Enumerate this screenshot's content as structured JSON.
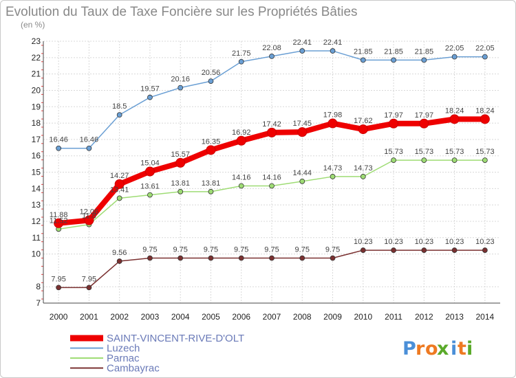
{
  "chart_data": {
    "type": "line",
    "title": "Evolution du Taux de Taxe Foncière sur les Propriétés Bâties",
    "subtitle": "(en %)",
    "xlabel": "",
    "ylabel": "",
    "x": [
      "2000",
      "2001",
      "2002",
      "2003",
      "2004",
      "2005",
      "2006",
      "2007",
      "2008",
      "2009",
      "2010",
      "2011",
      "2012",
      "2013",
      "2014"
    ],
    "ylim": [
      7,
      23
    ],
    "yticks": [
      "7",
      "8",
      "10",
      "11",
      "12",
      "13",
      "14",
      "15",
      "16",
      "17",
      "18",
      "19",
      "20",
      "21",
      "22",
      "23"
    ],
    "grid": true,
    "legend_position": "bottom-left",
    "series": [
      {
        "name": "SAINT-VINCENT-RIVE-D'OLT",
        "color": "#ee0000",
        "values": [
          11.88,
          12.06,
          14.27,
          15.04,
          15.57,
          16.35,
          16.92,
          17.42,
          17.45,
          17.98,
          17.62,
          17.97,
          17.97,
          18.24,
          18.24
        ],
        "labels": [
          "11.88",
          "12.06",
          "14.27",
          "15.04",
          "15.57",
          "16.35",
          "16.92",
          "17.42",
          "17.45",
          "17.98",
          "17.62",
          "17.97",
          "17.97",
          "18.24",
          "18.24"
        ]
      },
      {
        "name": "Luzech",
        "color": "#6a9fd4",
        "values": [
          16.46,
          16.46,
          18.5,
          19.57,
          20.16,
          20.56,
          21.75,
          22.08,
          22.41,
          22.41,
          21.85,
          21.85,
          21.85,
          22.05,
          22.05
        ],
        "labels": [
          "16.46",
          "16.46",
          "18.5",
          "19.57",
          "20.16",
          "20.56",
          "21.75",
          "22.08",
          "22.41",
          "22.41",
          "21.85",
          "21.85",
          "21.85",
          "22.05",
          "22.05"
        ]
      },
      {
        "name": "Parnac",
        "color": "#9edc74",
        "values": [
          11.52,
          11.8,
          13.41,
          13.61,
          13.81,
          13.81,
          14.16,
          14.16,
          14.44,
          14.73,
          14.73,
          15.73,
          15.73,
          15.73,
          15.73
        ],
        "labels": [
          "11.52",
          "11.8",
          "13.41",
          "13.61",
          "13.81",
          "13.81",
          "14.16",
          "14.16",
          "14.44",
          "14.73",
          "14.73",
          "15.73",
          "15.73",
          "15.73",
          "15.73"
        ]
      },
      {
        "name": "Cambayrac",
        "color": "#7a3030",
        "values": [
          7.95,
          7.95,
          9.56,
          9.75,
          9.75,
          9.75,
          9.75,
          9.75,
          9.75,
          9.75,
          10.23,
          10.23,
          10.23,
          10.23,
          10.23
        ],
        "labels": [
          "7.95",
          "7.95",
          "9.56",
          "9.75",
          "9.75",
          "9.75",
          "9.75",
          "9.75",
          "9.75",
          "9.75",
          "10.23",
          "10.23",
          "10.23",
          "10.23",
          "10.23"
        ]
      }
    ]
  },
  "brand": {
    "letters": [
      "P",
      "r",
      "o",
      "x",
      "i",
      "t",
      "i"
    ],
    "colors": [
      "#4a8fd8",
      "#ee7a22",
      "#ee7a22",
      "#5aaa2a",
      "#4a8fd8",
      "#ee7a22",
      "#5aaa2a"
    ]
  }
}
